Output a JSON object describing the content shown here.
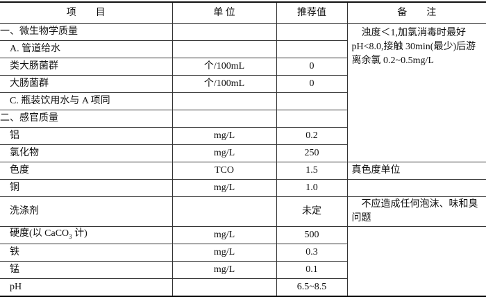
{
  "headers": [
    "项　　目",
    "单 位",
    "推荐值",
    "备　　注"
  ],
  "rows": [
    {
      "item": "一、微生物学质量",
      "unit": "",
      "value": ""
    },
    {
      "item": "A. 管道给水",
      "unit": "",
      "value": ""
    },
    {
      "item": "类大肠菌群",
      "unit": "个/100mL",
      "value": "0"
    },
    {
      "item": "大肠菌群",
      "unit": "个/100mL",
      "value": "0"
    },
    {
      "item": "C. 瓶装饮用水与 A 项同",
      "unit": "",
      "value": ""
    },
    {
      "item": "二、感官质量",
      "unit": "",
      "value": ""
    },
    {
      "item": "铝",
      "unit": "mg/L",
      "value": "0.2"
    },
    {
      "item": "氯化物",
      "unit": "mg/L",
      "value": "250"
    },
    {
      "item": "色度",
      "unit": "TCO",
      "value": "1.5"
    },
    {
      "item": "铜",
      "unit": "mg/L",
      "value": "1.0"
    },
    {
      "item": "洗涤剂",
      "unit": "",
      "value": "未定"
    },
    {
      "item": "硬度(以 CaCO",
      "item_sub": "3",
      "item_tail": " 计)",
      "unit": "mg/L",
      "value": "500"
    },
    {
      "item": "铁",
      "unit": "mg/L",
      "value": "0.3"
    },
    {
      "item": "锰",
      "unit": "mg/L",
      "value": "0.1"
    },
    {
      "item": "pH",
      "unit": "",
      "value": "6.5~8.5"
    }
  ],
  "notes": {
    "microbial": "浊度＜1,加氯消毒时最好pH<8.0,接触 30min(最少)后游离余氯 0.2~0.5mg/L",
    "color": "真色度单位",
    "detergent": "不应造成任何泡沫、味和臭问题"
  }
}
